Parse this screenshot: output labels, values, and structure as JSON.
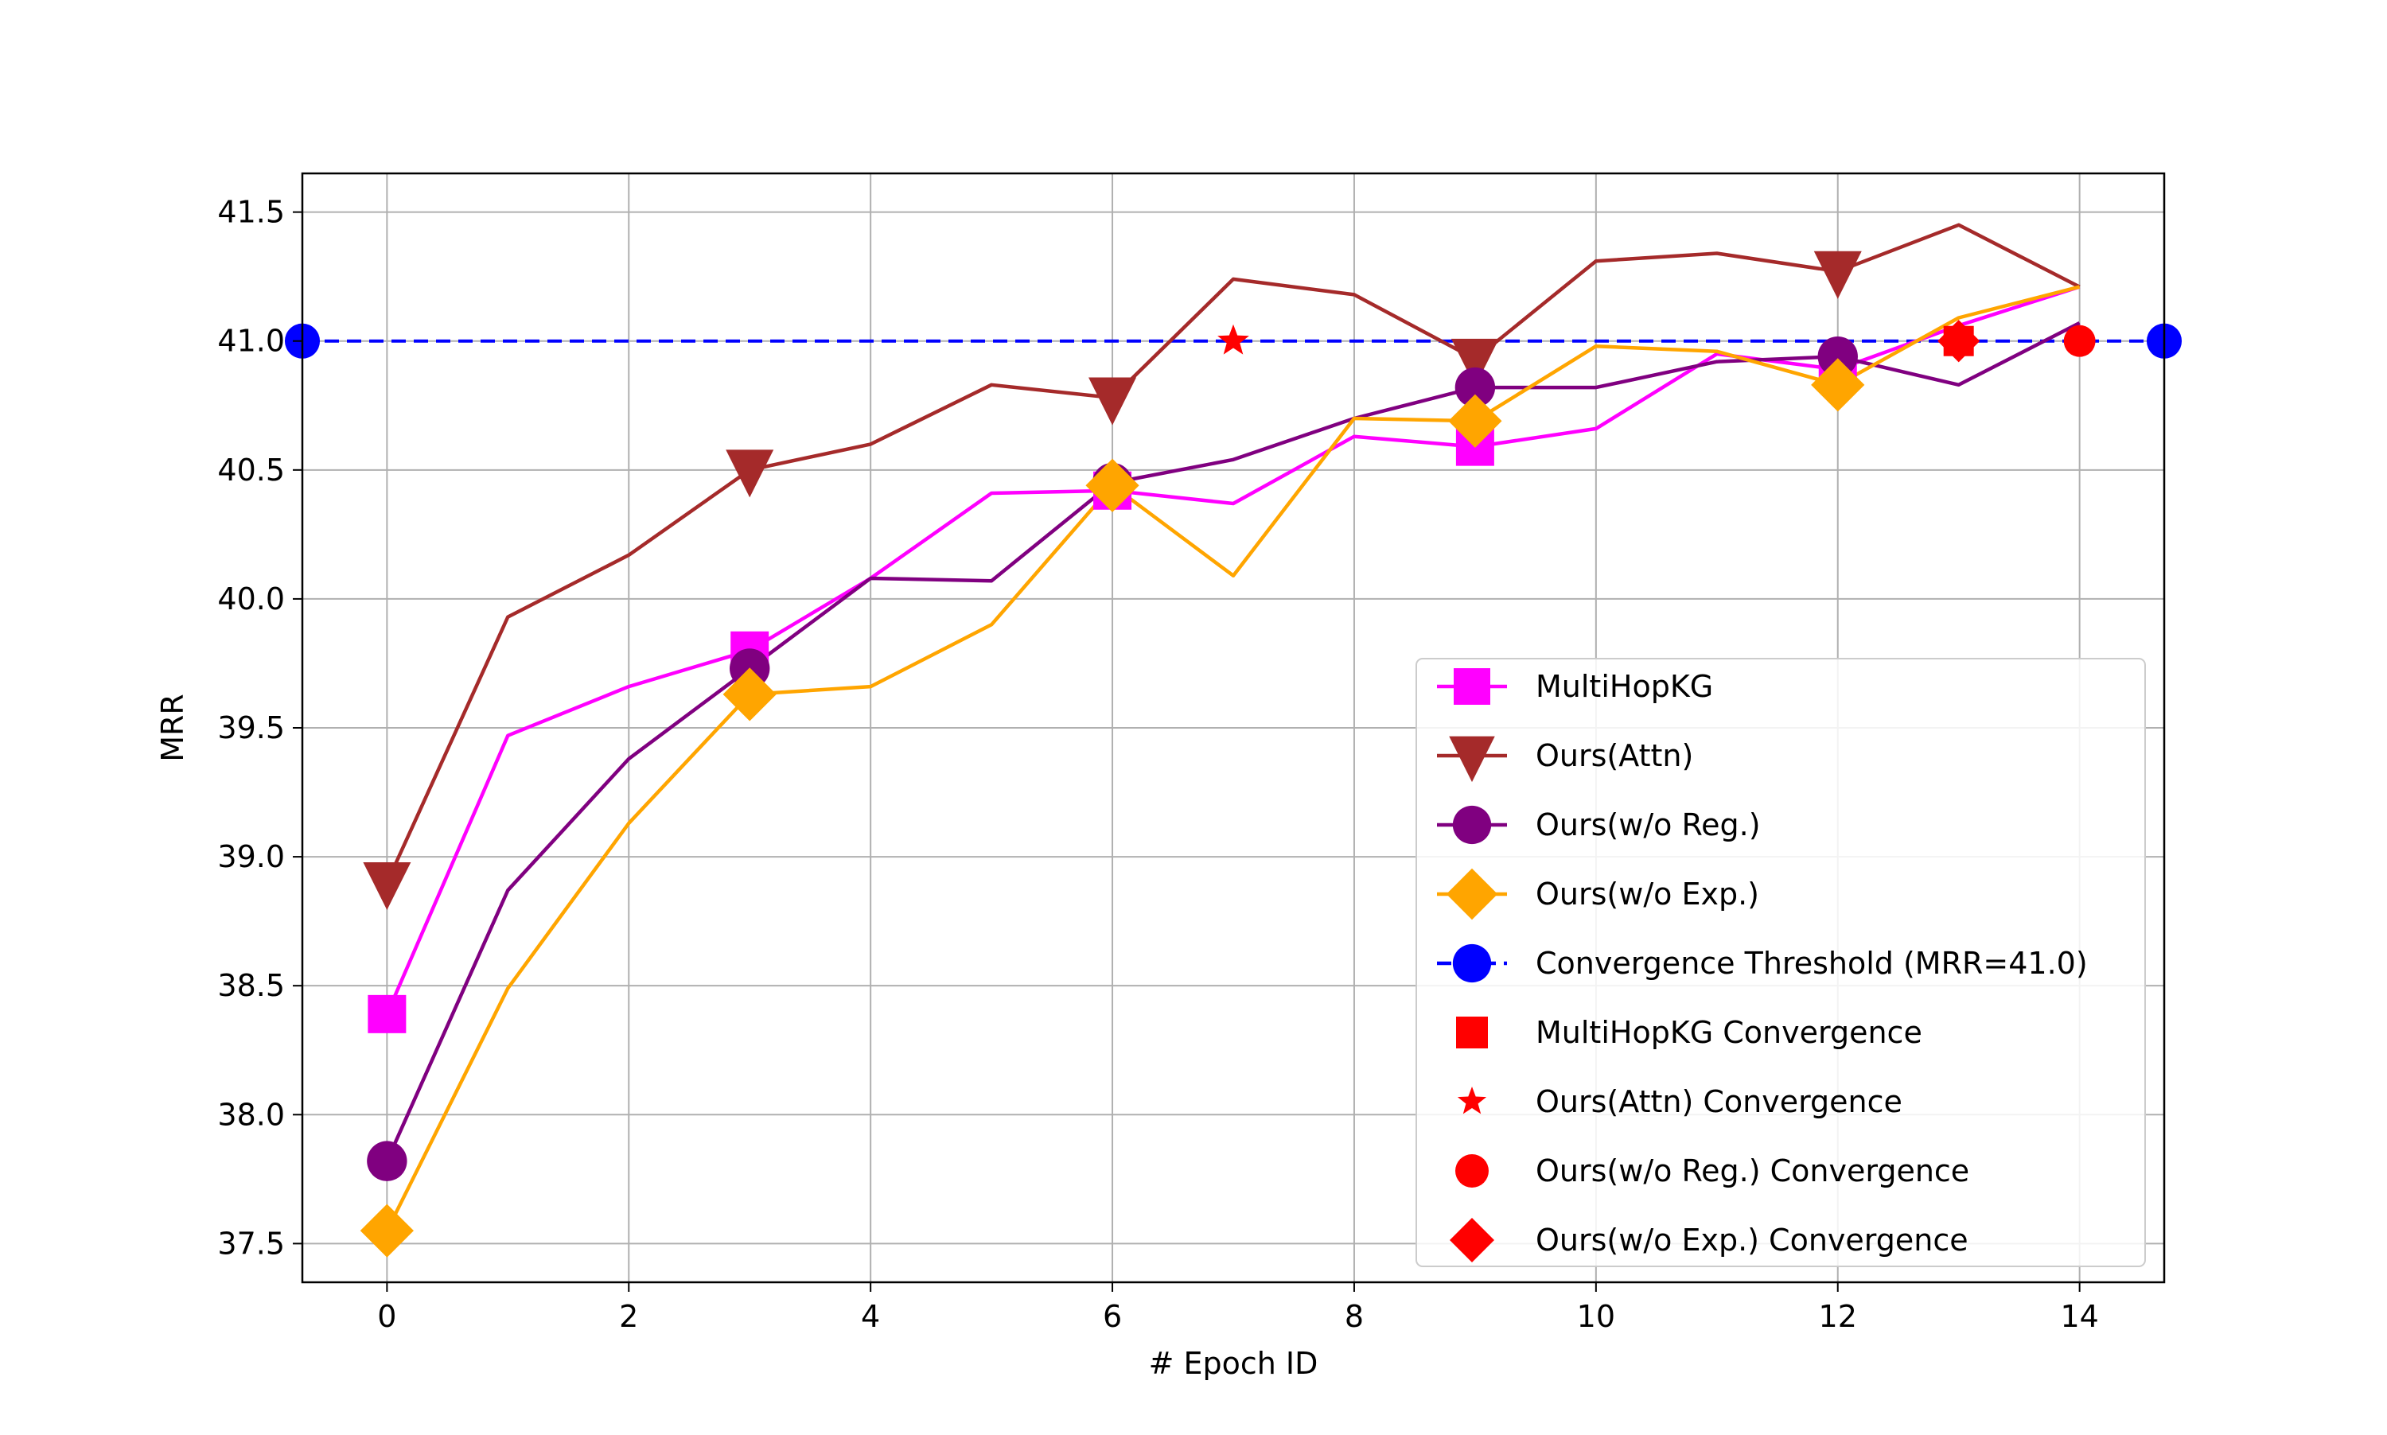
{
  "chart_data": {
    "type": "line",
    "xlabel": "# Epoch ID",
    "ylabel": "MRR",
    "xlim": [
      -0.7,
      14.7
    ],
    "ylim": [
      37.35,
      41.65
    ],
    "x_ticks": [
      0,
      2,
      4,
      6,
      8,
      10,
      12,
      14
    ],
    "x_tick_labels": [
      "0",
      "2",
      "4",
      "6",
      "8",
      "10",
      "12",
      "14"
    ],
    "y_ticks": [
      37.5,
      38.0,
      38.5,
      39.0,
      39.5,
      40.0,
      40.5,
      41.0,
      41.5
    ],
    "y_tick_labels": [
      "37.5",
      "38.0",
      "38.5",
      "39.0",
      "39.5",
      "40.0",
      "40.5",
      "41.0",
      "41.5"
    ],
    "grid": true,
    "legend_position": "lower-right",
    "x": [
      0,
      1,
      2,
      3,
      4,
      5,
      6,
      7,
      8,
      9,
      10,
      11,
      12,
      13,
      14
    ],
    "series": [
      {
        "name": "MultiHopKG",
        "color": "#ff00ff",
        "marker": "square",
        "marker_every": 3,
        "values": [
          38.39,
          39.47,
          39.66,
          39.8,
          40.08,
          40.41,
          40.42,
          40.37,
          40.63,
          40.59,
          40.66,
          40.95,
          40.89,
          41.06,
          41.21
        ]
      },
      {
        "name": "Ours(Attn)",
        "color": "#a52a2a",
        "marker": "triangle-down",
        "marker_every": 3,
        "values": [
          38.9,
          39.93,
          40.17,
          40.5,
          40.6,
          40.83,
          40.78,
          41.24,
          41.18,
          40.93,
          41.31,
          41.34,
          41.27,
          41.45,
          41.21
        ]
      },
      {
        "name": "Ours(w/o Reg.)",
        "color": "#800080",
        "marker": "circle",
        "marker_every": 3,
        "values": [
          37.82,
          38.87,
          39.38,
          39.73,
          40.08,
          40.07,
          40.45,
          40.54,
          40.7,
          40.82,
          40.82,
          40.92,
          40.94,
          40.83,
          41.07
        ]
      },
      {
        "name": "Ours(w/o Exp.)",
        "color": "#ffa500",
        "marker": "diamond",
        "marker_every": 3,
        "values": [
          37.55,
          38.49,
          39.13,
          39.63,
          39.66,
          39.9,
          40.44,
          40.09,
          40.7,
          40.69,
          40.98,
          40.96,
          40.83,
          41.09,
          41.21
        ]
      }
    ],
    "threshold": {
      "name": "Convergence Threshold (MRR=41.0)",
      "value": 41.0,
      "color": "#0000ff",
      "style": "dashed",
      "marker": "circle"
    },
    "convergence_points": [
      {
        "name": "MultiHopKG Convergence",
        "x": 13,
        "y": 41.0,
        "marker": "square",
        "color": "#ff0000"
      },
      {
        "name": "Ours(Attn) Convergence",
        "x": 7,
        "y": 41.0,
        "marker": "star",
        "color": "#ff0000"
      },
      {
        "name": "Ours(w/o Reg.) Convergence",
        "x": 14,
        "y": 41.0,
        "marker": "circle",
        "color": "#ff0000"
      },
      {
        "name": "Ours(w/o Exp.) Convergence",
        "x": 13,
        "y": 41.0,
        "marker": "diamond",
        "color": "#ff0000"
      }
    ]
  }
}
